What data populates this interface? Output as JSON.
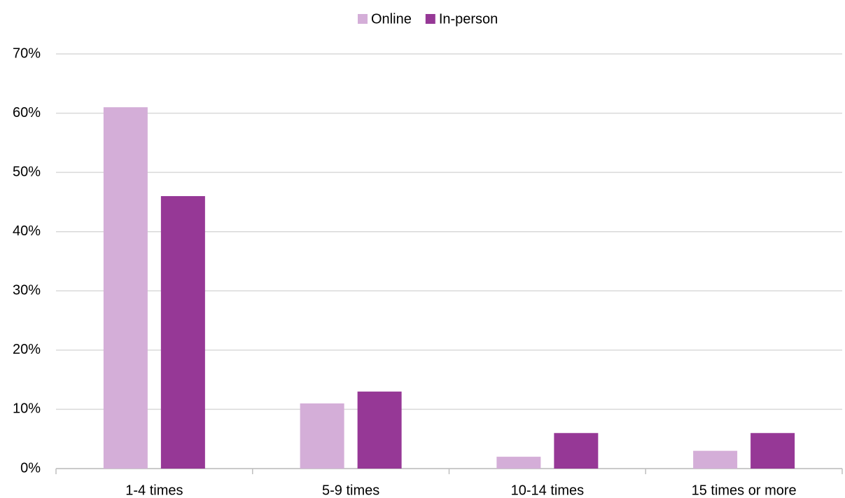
{
  "chart_data": {
    "type": "bar",
    "categories": [
      "1-4 times",
      "5-9 times",
      "10-14 times",
      "15 times or more"
    ],
    "series": [
      {
        "name": "Online",
        "color": "#d4aed8",
        "values": [
          61,
          11,
          2,
          3
        ]
      },
      {
        "name": "In-person",
        "color": "#963896",
        "values": [
          46,
          13,
          6,
          6
        ]
      }
    ],
    "ylim": [
      0,
      70
    ],
    "yticks": [
      {
        "value": 0,
        "label": "0%"
      },
      {
        "value": 10,
        "label": "10%"
      },
      {
        "value": 20,
        "label": "20%"
      },
      {
        "value": 30,
        "label": "30%"
      },
      {
        "value": 40,
        "label": "40%"
      },
      {
        "value": 50,
        "label": "50%"
      },
      {
        "value": 60,
        "label": "60%"
      },
      {
        "value": 70,
        "label": "70%"
      }
    ],
    "grid": true,
    "legend": "top"
  }
}
